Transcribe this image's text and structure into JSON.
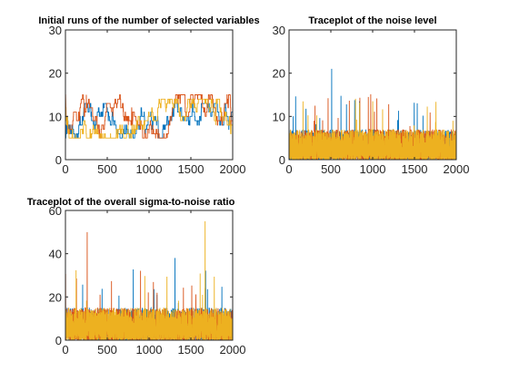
{
  "chart_data": [
    {
      "type": "line",
      "title": "Initial runs of the number of selected variables",
      "xlabel": "",
      "ylabel": "",
      "xlim": [
        0,
        2000
      ],
      "ylim": [
        0,
        30
      ],
      "xticks": [
        0,
        500,
        1000,
        1500,
        2000
      ],
      "yticks": [
        0,
        10,
        20,
        30
      ],
      "grid": false,
      "n_samples": 2000,
      "series": [
        {
          "color": "#0072BD",
          "start": 0,
          "settle_low": 5,
          "settle_high": 13,
          "peak": 1,
          "peak_at": 0
        },
        {
          "color": "#D95319",
          "start": 24,
          "settle_low": 5,
          "settle_high": 15,
          "peak": 15,
          "peak_at": 250
        },
        {
          "color": "#EDB120",
          "start": 30,
          "settle_low": 5,
          "settle_high": 14,
          "peak": 14,
          "peak_at": 1820
        }
      ]
    },
    {
      "type": "line",
      "title": "Traceplot of the noise level",
      "xlabel": "",
      "ylabel": "",
      "xlim": [
        0,
        2000
      ],
      "ylim": [
        0,
        30
      ],
      "xticks": [
        0,
        500,
        1000,
        1500,
        2000
      ],
      "yticks": [
        0,
        10,
        20,
        30
      ],
      "grid": false,
      "n_samples": 2000,
      "series": [
        {
          "color": "#0072BD",
          "typical_max": 7,
          "peak": 21,
          "peak_at": 510
        },
        {
          "color": "#D95319",
          "typical_max": 7,
          "peak": 9,
          "peak_at": 300
        },
        {
          "color": "#EDB120",
          "typical_max": 7,
          "peak": 9,
          "peak_at": 1960
        }
      ]
    },
    {
      "type": "line",
      "title": "Traceplot of the overall sigma-to-noise ratio",
      "xlabel": "",
      "ylabel": "",
      "xlim": [
        0,
        2000
      ],
      "ylim": [
        0,
        60
      ],
      "xticks": [
        0,
        500,
        1000,
        1500,
        2000
      ],
      "yticks": [
        0,
        20,
        40,
        60
      ],
      "grid": false,
      "n_samples": 2000,
      "series": [
        {
          "color": "#0072BD",
          "typical_max": 15,
          "peak": 38,
          "peak_at": 1310
        },
        {
          "color": "#D95319",
          "typical_max": 15,
          "peak": 50,
          "peak_at": 260
        },
        {
          "color": "#EDB120",
          "typical_max": 15,
          "peak": 55,
          "peak_at": 1670
        }
      ]
    }
  ]
}
